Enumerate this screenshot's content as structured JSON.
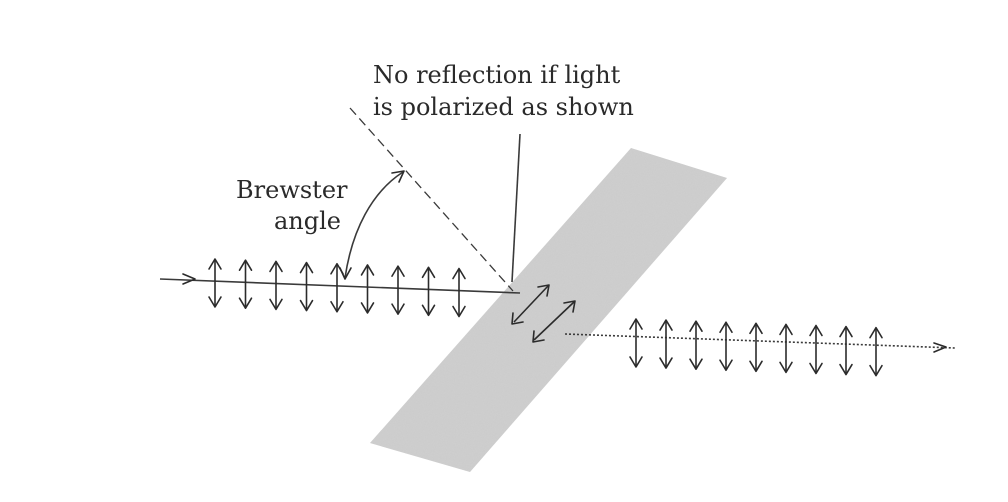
{
  "labels": {
    "caption_line1": "No reflection if light",
    "caption_line2": "is polarized as shown",
    "angle_line1": "Brewster",
    "angle_line2": "angle"
  },
  "incident_polarization_count": 9,
  "transmitted_polarization_count": 9,
  "colors": {
    "plate": "#c9c9c9",
    "ink": "#2b2b2b"
  }
}
